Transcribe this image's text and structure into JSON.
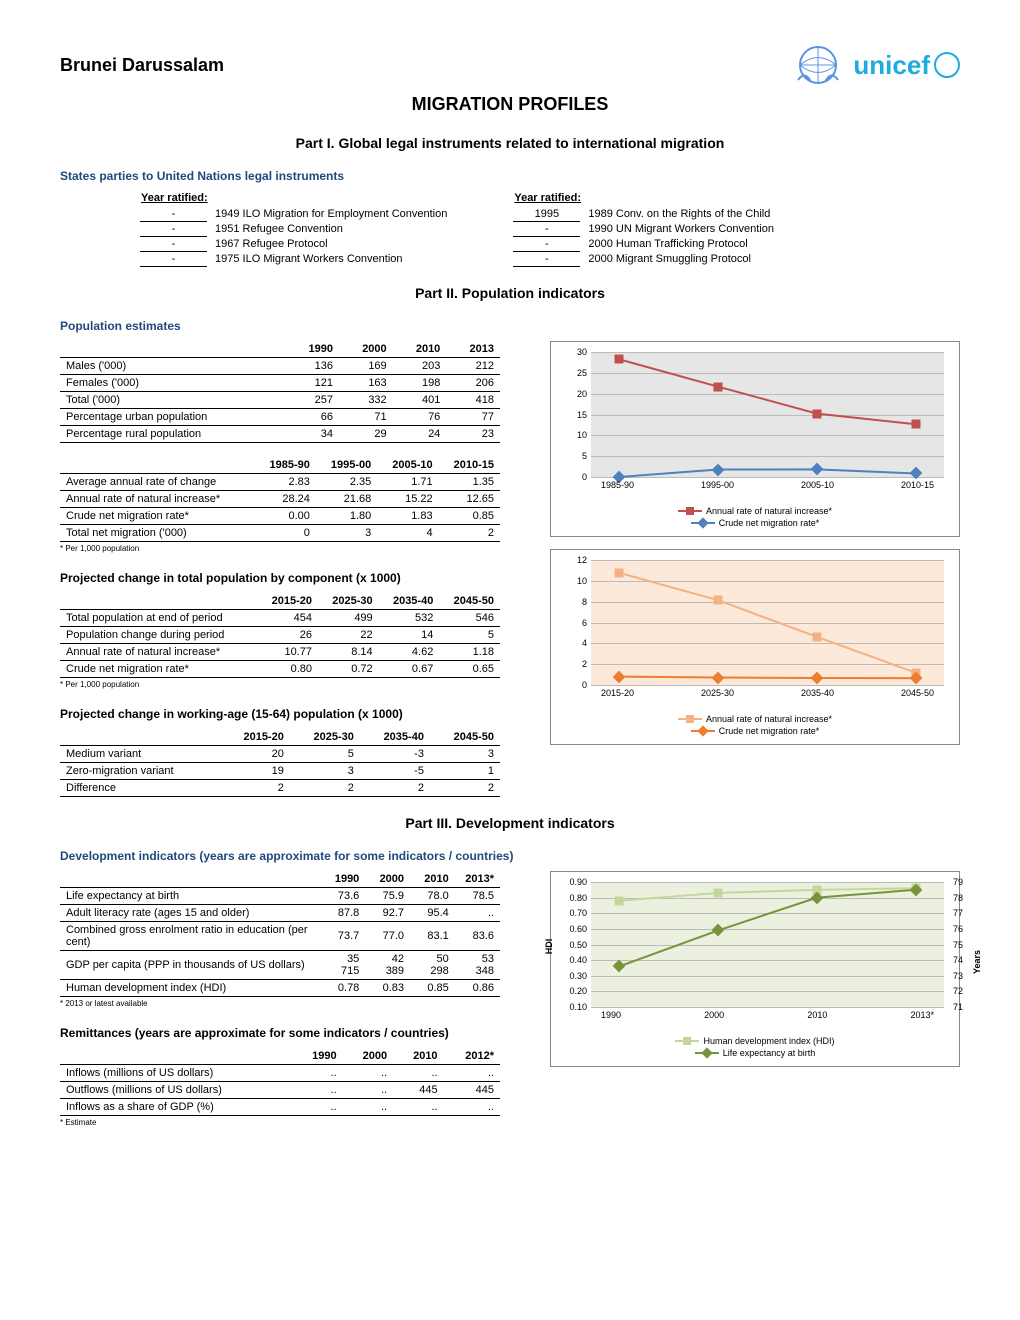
{
  "country": "Brunei Darussalam",
  "main_title": "MIGRATION PROFILES",
  "colors": {
    "heading": "#1f497d",
    "unicef": "#1cabe2",
    "red": "#c0504d",
    "blue": "#4f81bd",
    "orange": "#f79646",
    "green_light": "#9bbb59",
    "green_dark": "#71893f"
  },
  "part1": {
    "title": "Part I. Global legal instruments related to international migration",
    "section": "States parties to United Nations legal instruments",
    "year_header": "Year ratified:",
    "left": [
      {
        "year": "-",
        "name": "1949 ILO Migration for Employment Convention"
      },
      {
        "year": "-",
        "name": "1951 Refugee Convention"
      },
      {
        "year": "-",
        "name": "1967 Refugee Protocol"
      },
      {
        "year": "-",
        "name": "1975 ILO Migrant Workers Convention"
      }
    ],
    "right": [
      {
        "year": "1995",
        "name": "1989 Conv. on the Rights of the Child"
      },
      {
        "year": "-",
        "name": "1990 UN Migrant Workers Convention"
      },
      {
        "year": "-",
        "name": "2000 Human Trafficking Protocol"
      },
      {
        "year": "-",
        "name": "2000 Migrant Smuggling Protocol"
      }
    ]
  },
  "part2": {
    "title": "Part II. Population indicators",
    "section1": "Population estimates",
    "pop_est": {
      "columns": [
        "1990",
        "2000",
        "2010",
        "2013"
      ],
      "rows": [
        {
          "label": "Males ('000)",
          "v": [
            "136",
            "169",
            "203",
            "212"
          ]
        },
        {
          "label": "Females ('000)",
          "v": [
            "121",
            "163",
            "198",
            "206"
          ]
        },
        {
          "label": "Total ('000)",
          "v": [
            "257",
            "332",
            "401",
            "418"
          ]
        },
        {
          "label": "Percentage urban population",
          "v": [
            "66",
            "71",
            "76",
            "77"
          ]
        },
        {
          "label": "Percentage rural population",
          "v": [
            "34",
            "29",
            "24",
            "23"
          ]
        }
      ]
    },
    "rates": {
      "columns": [
        "1985-90",
        "1995-00",
        "2005-10",
        "2010-15"
      ],
      "rows": [
        {
          "label": "Average annual rate of change",
          "v": [
            "2.83",
            "2.35",
            "1.71",
            "1.35"
          ]
        },
        {
          "label": "Annual rate of natural increase*",
          "v": [
            "28.24",
            "21.68",
            "15.22",
            "12.65"
          ]
        },
        {
          "label": "Crude net migration rate*",
          "v": [
            "0.00",
            "1.80",
            "1.83",
            "0.85"
          ]
        },
        {
          "label": "Total net migration ('000)",
          "v": [
            "0",
            "3",
            "4",
            "2"
          ]
        }
      ],
      "footnote": "* Per 1,000 population"
    },
    "chart1": {
      "bg": "#e6e6e6",
      "x": [
        "1985-90",
        "1995-00",
        "2005-10",
        "2010-15"
      ],
      "ymin": 0,
      "ymax": 30,
      "ystep": 5,
      "series": [
        {
          "name": "Annual rate of natural increase*",
          "color": "#c0504d",
          "marker": "square",
          "y": [
            28.24,
            21.68,
            15.22,
            12.65
          ]
        },
        {
          "name": "Crude net migration rate*",
          "color": "#4f81bd",
          "marker": "diamond",
          "y": [
            0.0,
            1.8,
            1.83,
            0.85
          ]
        }
      ]
    },
    "section2": "Projected change in total population by component (x 1000)",
    "proj_total": {
      "columns": [
        "2015-20",
        "2025-30",
        "2035-40",
        "2045-50"
      ],
      "rows": [
        {
          "label": "Total population at end of period",
          "v": [
            "454",
            "499",
            "532",
            "546"
          ]
        },
        {
          "label": "Population change during period",
          "v": [
            "26",
            "22",
            "14",
            "5"
          ]
        },
        {
          "label": "Annual rate of natural increase*",
          "v": [
            "10.77",
            "8.14",
            "4.62",
            "1.18"
          ]
        },
        {
          "label": "Crude net migration rate*",
          "v": [
            "0.80",
            "0.72",
            "0.67",
            "0.65"
          ]
        }
      ],
      "footnote": "* Per 1,000 population"
    },
    "section3": "Projected change in working-age (15-64) population (x 1000)",
    "proj_work": {
      "columns": [
        "2015-20",
        "2025-30",
        "2035-40",
        "2045-50"
      ],
      "rows": [
        {
          "label": "Medium variant",
          "v": [
            "20",
            "5",
            "-3",
            "3"
          ]
        },
        {
          "label": "Zero-migration variant",
          "v": [
            "19",
            "3",
            "-5",
            "1"
          ]
        },
        {
          "label": "Difference",
          "v": [
            "2",
            "2",
            "2",
            "2"
          ]
        }
      ]
    },
    "chart2": {
      "bg": "#fde9d9",
      "x": [
        "2015-20",
        "2025-30",
        "2035-40",
        "2045-50"
      ],
      "ymin": 0,
      "ymax": 12,
      "ystep": 2,
      "series": [
        {
          "name": "Annual rate of natural increase*",
          "color": "#f5b183",
          "marker": "square",
          "y": [
            10.77,
            8.14,
            4.62,
            1.18
          ]
        },
        {
          "name": "Crude net migration rate*",
          "color": "#ed7d31",
          "marker": "diamond",
          "y": [
            0.8,
            0.72,
            0.67,
            0.65
          ]
        }
      ]
    }
  },
  "part3": {
    "title": "Part III. Development indicators",
    "section1": "Development indicators (years are approximate for some indicators / countries)",
    "dev": {
      "columns": [
        "1990",
        "2000",
        "2010",
        "2013*"
      ],
      "rows": [
        {
          "label": "Life expectancy at birth",
          "v": [
            "73.6",
            "75.9",
            "78.0",
            "78.5"
          ]
        },
        {
          "label": "Adult literacy rate (ages 15 and older)",
          "v": [
            "87.8",
            "92.7",
            "95.4",
            ".."
          ]
        },
        {
          "label": "Combined gross enrolment ratio in education (per cent)",
          "v": [
            "73.7",
            "77.0",
            "83.1",
            "83.6"
          ]
        },
        {
          "label": "GDP per capita (PPP in thousands of US dollars)",
          "v": [
            "35 715",
            "42 389",
            "50 298",
            "53 348"
          ]
        },
        {
          "label": "Human development index (HDI)",
          "v": [
            "0.78",
            "0.83",
            "0.85",
            "0.86"
          ]
        }
      ],
      "footnote": "* 2013 or latest available"
    },
    "section2": "Remittances (years are approximate for some indicators / countries)",
    "remit": {
      "columns": [
        "1990",
        "2000",
        "2010",
        "2012*"
      ],
      "rows": [
        {
          "label": "Inflows (millions of US dollars)",
          "v": [
            "..",
            "..",
            "..",
            ".."
          ]
        },
        {
          "label": "Outflows (millions of US dollars)",
          "v": [
            "..",
            "..",
            "445",
            "445"
          ]
        },
        {
          "label": "Inflows as a share of GDP (%)",
          "v": [
            "..",
            "..",
            "..",
            ".."
          ]
        }
      ],
      "footnote": "* Estimate"
    },
    "chart3": {
      "bg": "#ebf1de",
      "x": [
        "1990",
        "2000",
        "2010",
        "2013*"
      ],
      "y1min": 0.1,
      "y1max": 0.9,
      "y1step": 0.1,
      "y1label": "HDI",
      "y2min": 71,
      "y2max": 79,
      "y2step": 1,
      "y2label": "Years",
      "series": [
        {
          "name": "Human development index (HDI)",
          "color": "#c4d79b",
          "marker": "square",
          "axis": 1,
          "y": [
            0.78,
            0.83,
            0.85,
            0.86
          ]
        },
        {
          "name": "Life expectancy at birth",
          "color": "#77933c",
          "marker": "diamond",
          "axis": 2,
          "y": [
            73.6,
            75.9,
            78.0,
            78.5
          ]
        }
      ]
    }
  }
}
